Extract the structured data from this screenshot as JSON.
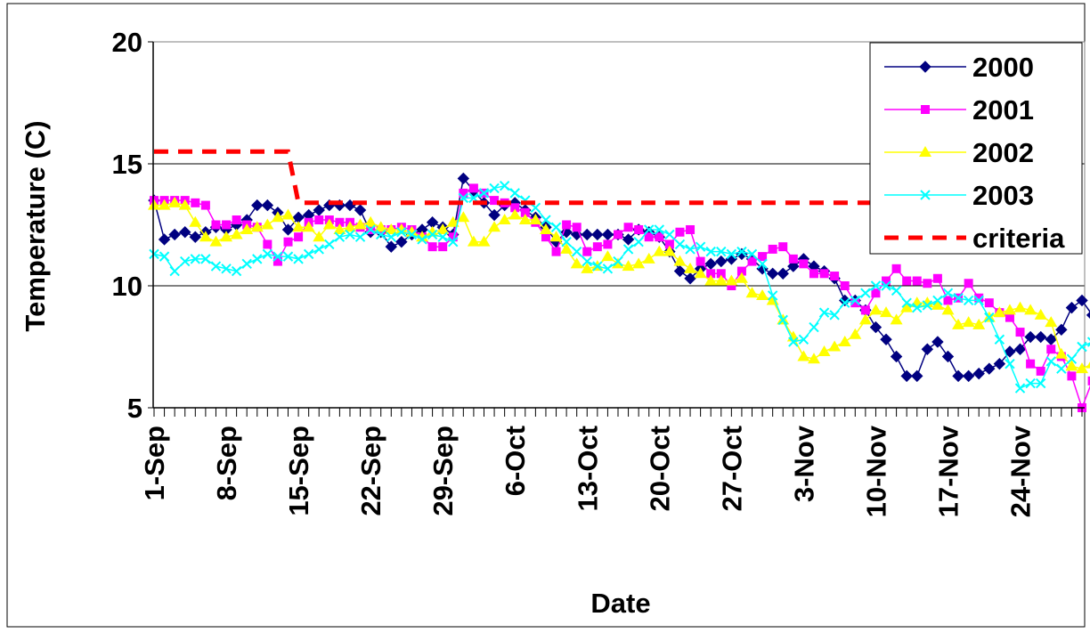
{
  "chart_data": {
    "type": "line",
    "title": "",
    "xlabel": "Date",
    "ylabel": "Temperature (C)",
    "ylim": [
      5,
      20
    ],
    "yticks": [
      "5",
      "10",
      "15",
      "20"
    ],
    "xlim_day": [
      1,
      91
    ],
    "x_axis_note": "day 1 = 1-Sep; one tick per day",
    "xticks": [
      {
        "label": "1-Sep",
        "day": 1
      },
      {
        "label": "8-Sep",
        "day": 8
      },
      {
        "label": "15-Sep",
        "day": 15
      },
      {
        "label": "22-Sep",
        "day": 22
      },
      {
        "label": "29-Sep",
        "day": 29
      },
      {
        "label": "6-Oct",
        "day": 36
      },
      {
        "label": "13-Oct",
        "day": 43
      },
      {
        "label": "20-Oct",
        "day": 50
      },
      {
        "label": "27-Oct",
        "day": 57
      },
      {
        "label": "3-Nov",
        "day": 64
      },
      {
        "label": "10-Nov",
        "day": 71
      },
      {
        "label": "17-Nov",
        "day": 78
      },
      {
        "label": "24-Nov",
        "day": 85
      }
    ],
    "grid": "horizontal",
    "legend_position": "top-right",
    "series": [
      {
        "name": "2000",
        "color": "#000080",
        "marker": "diamond",
        "values": [
          13.5,
          11.9,
          12.1,
          12.2,
          12.0,
          12.2,
          12.4,
          12.3,
          12.5,
          12.7,
          13.3,
          13.3,
          13.0,
          12.3,
          12.8,
          12.9,
          13.1,
          13.3,
          13.3,
          13.3,
          13.1,
          12.2,
          12.2,
          11.6,
          11.8,
          12.1,
          12.3,
          12.6,
          12.4,
          12.1,
          14.4,
          13.9,
          13.4,
          12.9,
          13.3,
          13.4,
          13.1,
          12.8,
          12.4,
          11.8,
          12.2,
          12.1,
          12.1,
          12.1,
          12.1,
          12.1,
          11.9,
          12.3,
          12.2,
          12.0,
          11.4,
          10.6,
          10.3,
          10.7,
          10.9,
          11.0,
          11.1,
          11.3,
          11.1,
          10.7,
          10.5,
          10.5,
          10.8,
          11.1,
          10.8,
          10.6,
          10.3,
          9.4,
          9.4,
          9.0,
          8.3,
          7.8,
          7.1,
          6.3,
          6.3,
          7.4,
          7.7,
          7.1,
          6.3,
          6.3,
          6.4,
          6.6,
          6.8,
          7.3,
          7.4,
          7.9,
          7.9,
          7.8,
          8.2,
          9.1,
          9.4,
          8.8
        ]
      },
      {
        "name": "2001",
        "color": "#FF00FF",
        "marker": "square",
        "values": [
          13.5,
          13.5,
          13.5,
          13.5,
          13.4,
          13.3,
          12.5,
          12.5,
          12.7,
          12.5,
          12.4,
          11.7,
          11.0,
          11.8,
          12.0,
          12.6,
          12.7,
          12.7,
          12.6,
          12.6,
          12.4,
          12.3,
          12.3,
          12.3,
          12.4,
          12.3,
          12.0,
          11.6,
          11.6,
          12.0,
          13.8,
          14.0,
          13.8,
          13.5,
          13.4,
          13.2,
          13.0,
          12.6,
          12.0,
          11.4,
          12.5,
          12.4,
          11.4,
          11.6,
          11.7,
          12.1,
          12.4,
          12.3,
          12.0,
          12.0,
          11.7,
          12.2,
          12.3,
          11.0,
          10.5,
          10.5,
          10.0,
          10.6,
          11.0,
          11.2,
          11.5,
          11.6,
          11.1,
          10.9,
          10.5,
          10.5,
          10.4,
          10.0,
          9.3,
          9.0,
          9.7,
          10.2,
          10.7,
          10.2,
          10.2,
          10.1,
          10.3,
          9.4,
          9.5,
          10.1,
          9.5,
          9.3,
          8.9,
          8.7,
          8.1,
          6.8,
          6.5,
          7.4,
          7.1,
          6.3,
          5.0,
          6.1
        ]
      },
      {
        "name": "2002",
        "color": "#FFFF00",
        "marker": "triangle",
        "values": [
          13.3,
          13.3,
          13.4,
          13.3,
          12.6,
          12.0,
          11.8,
          12.0,
          12.1,
          12.3,
          12.4,
          12.5,
          12.8,
          12.9,
          12.4,
          12.4,
          12.0,
          12.5,
          12.3,
          12.4,
          12.5,
          12.6,
          12.4,
          12.3,
          12.3,
          12.2,
          12.0,
          12.2,
          12.3,
          12.6,
          12.8,
          11.8,
          11.8,
          12.4,
          12.7,
          12.9,
          12.7,
          12.7,
          12.3,
          12.0,
          11.5,
          10.9,
          10.7,
          10.8,
          11.2,
          10.9,
          10.8,
          10.9,
          11.1,
          11.4,
          11.4,
          11.0,
          10.7,
          10.5,
          10.2,
          10.2,
          10.2,
          10.3,
          9.7,
          9.6,
          9.4,
          8.6,
          7.9,
          7.1,
          7.0,
          7.3,
          7.5,
          7.7,
          8.0,
          8.6,
          9.0,
          8.9,
          8.6,
          9.1,
          9.3,
          9.3,
          9.2,
          9.0,
          8.4,
          8.5,
          8.4,
          8.7,
          8.9,
          9.0,
          9.1,
          9.0,
          8.8,
          8.5,
          7.2,
          6.7,
          6.6,
          6.8
        ]
      },
      {
        "name": "2003",
        "color": "#00FFFF",
        "marker": "cross",
        "values": [
          11.3,
          11.2,
          10.6,
          11.0,
          11.1,
          11.1,
          10.8,
          10.7,
          10.6,
          10.9,
          11.1,
          11.3,
          11.2,
          11.2,
          11.1,
          11.3,
          11.5,
          11.7,
          12.0,
          12.1,
          12.0,
          12.3,
          12.1,
          12.0,
          12.2,
          12.1,
          11.9,
          12.1,
          12.0,
          11.8,
          13.6,
          13.6,
          13.8,
          14.0,
          14.1,
          13.8,
          13.5,
          13.2,
          12.7,
          12.4,
          11.8,
          11.4,
          11.0,
          10.8,
          10.7,
          11.0,
          11.5,
          11.8,
          12.3,
          12.3,
          12.1,
          11.7,
          11.5,
          11.6,
          11.4,
          11.4,
          11.3,
          11.4,
          11.3,
          10.9,
          9.6,
          8.6,
          7.7,
          7.8,
          8.3,
          8.9,
          8.8,
          9.3,
          9.4,
          9.7,
          10.0,
          10.0,
          9.8,
          9.3,
          9.1,
          9.2,
          9.4,
          9.7,
          9.5,
          9.4,
          9.4,
          8.7,
          7.8,
          6.8,
          5.8,
          6.0,
          6.0,
          6.9,
          6.6,
          7.0,
          7.5,
          7.7
        ]
      },
      {
        "name": "criteria",
        "color": "#FF0000",
        "dashed": true,
        "points": [
          [
            1,
            15.5
          ],
          [
            14,
            15.5
          ],
          [
            15,
            13.4
          ],
          [
            91,
            13.4
          ]
        ]
      }
    ]
  }
}
